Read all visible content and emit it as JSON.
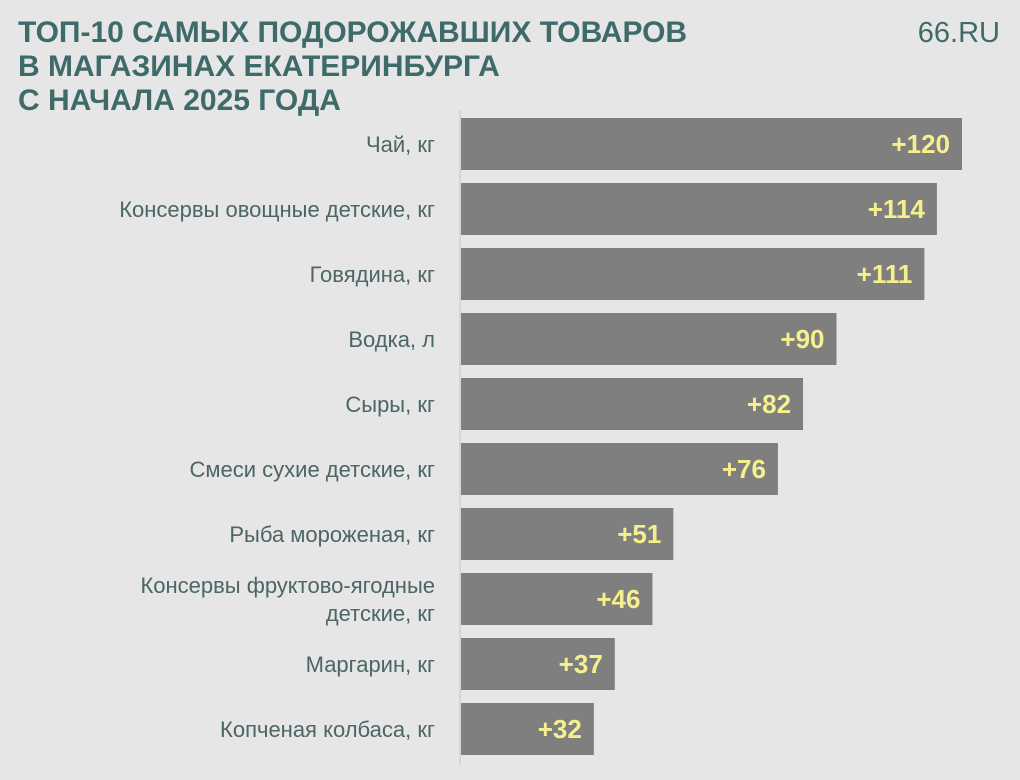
{
  "title_lines": [
    "ТОП-10 САМЫХ ПОДОРОЖАВШИХ ТОВАРОВ",
    "В МАГАЗИНАХ ЕКАТЕРИНБУРГА",
    "С НАЧАЛА 2025 ГОДА"
  ],
  "brand": "66.RU",
  "colors": {
    "background": "#e6e6e6",
    "title": "#3e6b6a",
    "bar": "#7f7f7f",
    "value_label": "#f6f08c",
    "category_label": "#4c6565",
    "axis": "#d0d0d0"
  },
  "chart_data": {
    "type": "bar",
    "orientation": "horizontal",
    "title": "ТОП-10 САМЫХ ПОДОРОЖАВШИХ ТОВАРОВ В МАГАЗИНАХ ЕКАТЕРИНБУРГА С НАЧАЛА 2025 ГОДА",
    "categories": [
      [
        "Чай, кг"
      ],
      [
        "Консервы овощные детские, кг"
      ],
      [
        "Говядина, кг"
      ],
      [
        "Водка, л"
      ],
      [
        "Сыры, кг"
      ],
      [
        "Смеси сухие детские, кг"
      ],
      [
        "Рыба мороженая, кг"
      ],
      [
        "Консервы фруктово-ягодные",
        "детские, кг"
      ],
      [
        "Маргарин, кг"
      ],
      [
        "Копченая колбаса, кг"
      ]
    ],
    "values": [
      120,
      114,
      111,
      90,
      82,
      76,
      51,
      46,
      37,
      32
    ],
    "data_labels": [
      "+120",
      "+114",
      "+111",
      "+90",
      "+82",
      "+76",
      "+51",
      "+46",
      "+37",
      "+32"
    ],
    "xlim": [
      0,
      120
    ],
    "grid": false,
    "xlabel": "",
    "ylabel": ""
  }
}
